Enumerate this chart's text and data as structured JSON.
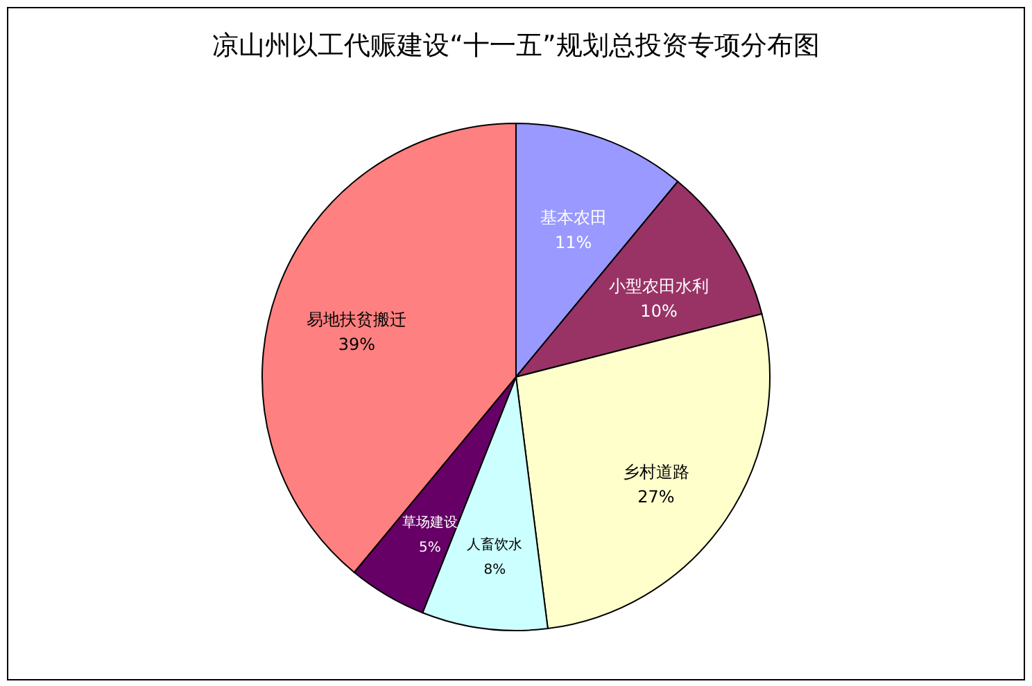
{
  "chart_data": {
    "type": "pie",
    "title": "凉山州以工代赈建设“十一五”规划总投资专项分布图",
    "categories": [
      "基本农田",
      "小型农田水利",
      "乡村道路",
      "人畜饮水",
      "草场建设",
      "易地扶贫搬迁"
    ],
    "values": [
      11,
      10,
      27,
      8,
      5,
      39
    ],
    "colors": [
      "#9999ff",
      "#993366",
      "#ffffcc",
      "#ccffff",
      "#660066",
      "#ff8080"
    ],
    "value_labels": [
      "11%",
      "10%",
      "27%",
      "8%",
      "5%",
      "39%"
    ],
    "legend": false
  }
}
